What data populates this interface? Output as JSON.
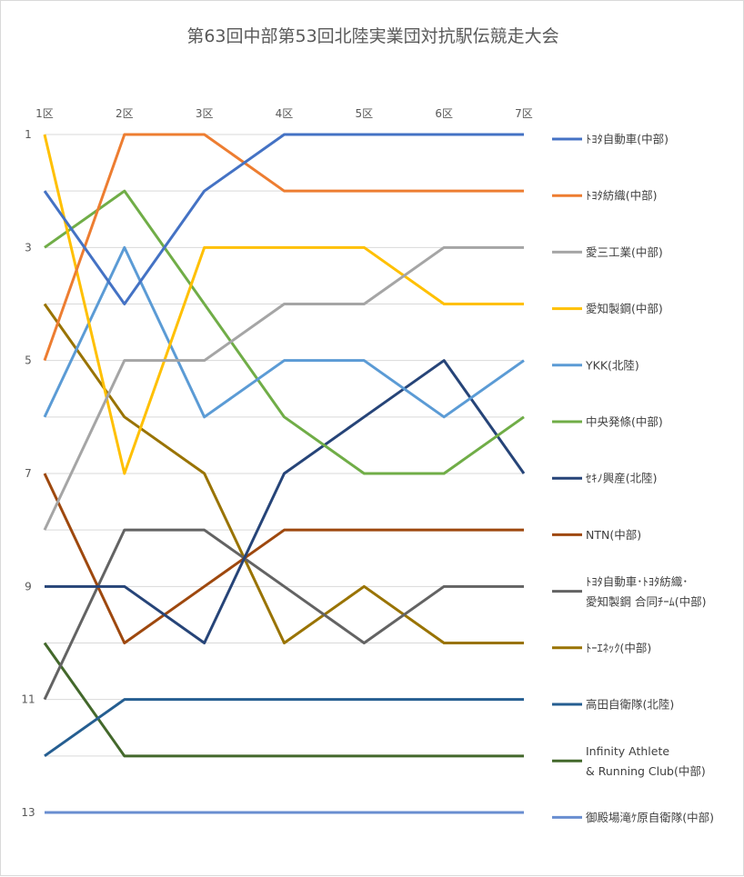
{
  "chart_data": {
    "type": "line",
    "title": "第63回中部第53回北陸実業団対抗駅伝競走大会",
    "categories": [
      "1区",
      "2区",
      "3区",
      "4区",
      "5区",
      "6区",
      "7区"
    ],
    "y_ticks": [
      "1",
      "3",
      "5",
      "7",
      "9",
      "11",
      "13"
    ],
    "ylim": [
      1,
      13
    ],
    "y_reversed": true,
    "grid": "horizontal",
    "legend_position": "right",
    "series": [
      {
        "name": "ﾄﾖﾀ自動車(中部)",
        "color": "#4472c4",
        "values": [
          2,
          4,
          2,
          1,
          1,
          1,
          1
        ]
      },
      {
        "name": "ﾄﾖﾀ紡織(中部)",
        "color": "#ed7d31",
        "values": [
          5,
          1,
          1,
          2,
          2,
          2,
          2
        ]
      },
      {
        "name": "愛三工業(中部)",
        "color": "#a5a5a5",
        "values": [
          8,
          5,
          5,
          4,
          4,
          3,
          3
        ]
      },
      {
        "name": "愛知製鋼(中部)",
        "color": "#ffc000",
        "values": [
          1,
          7,
          3,
          3,
          3,
          4,
          4
        ]
      },
      {
        "name": "YKK(北陸)",
        "color": "#5b9bd5",
        "values": [
          6,
          3,
          6,
          5,
          5,
          6,
          5
        ]
      },
      {
        "name": "中央発條(中部)",
        "color": "#70ad47",
        "values": [
          3,
          2,
          4,
          6,
          7,
          7,
          6
        ]
      },
      {
        "name": "ｾｷﾉ興産(北陸)",
        "color": "#264478",
        "values": [
          9,
          9,
          10,
          7,
          6,
          5,
          7
        ]
      },
      {
        "name": "NTN(中部)",
        "color": "#9e480e",
        "values": [
          7,
          10,
          9,
          8,
          8,
          8,
          8
        ]
      },
      {
        "name": "ﾄﾖﾀ自動車･ﾄﾖﾀ紡織･愛知製鋼 合同ﾁｰﾑ(中部)",
        "legend_lines": [
          "ﾄﾖﾀ自動車･ﾄﾖﾀ紡織･",
          "愛知製鋼 合同ﾁｰﾑ(中部)"
        ],
        "color": "#636363",
        "values": [
          11,
          8,
          8,
          9,
          10,
          9,
          9
        ]
      },
      {
        "name": "ﾄｰｴﾈｯｸ(中部)",
        "color": "#997300",
        "values": [
          4,
          6,
          7,
          10,
          9,
          10,
          10
        ]
      },
      {
        "name": "高田自衛隊(北陸)",
        "color": "#255e91",
        "values": [
          12,
          11,
          11,
          11,
          11,
          11,
          11
        ]
      },
      {
        "name": "Infinity Athlete & Running Club(中部)",
        "legend_lines": [
          "Infinity Athlete",
          "& Running Club(中部)"
        ],
        "color": "#43682b",
        "values": [
          10,
          12,
          12,
          12,
          12,
          12,
          12
        ]
      },
      {
        "name": "御殿場滝ｹ原自衛隊(中部)",
        "color": "#698ed0",
        "values": [
          13,
          13,
          13,
          13,
          13,
          13,
          13
        ]
      }
    ]
  }
}
